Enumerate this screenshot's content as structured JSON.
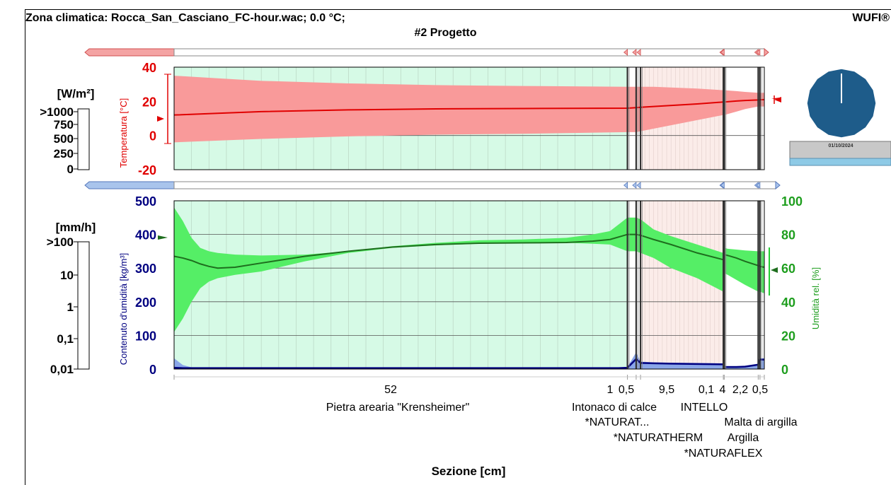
{
  "header": {
    "climate": "Zona climatica: Rocca_San_Casciano_FC-hour.wac; 0.0 °C;",
    "brand": "WUFI®",
    "project": "#2 Progetto"
  },
  "colors": {
    "temperature": "#e00000",
    "temperature_band": "#f99a9a",
    "humidity": "#1e6e1e",
    "humidity_band": "#55ee66",
    "water_content": "#000080",
    "water_band": "#8aa6e8",
    "layer_stone": "#d6fae6",
    "layer_plaster": "#fbece9",
    "clock_face": "#1e5c8a"
  },
  "chart_data": [
    {
      "type": "area",
      "name_key": "temperature",
      "ylabel": "Temperatura [°C]",
      "yticks": [
        "40",
        "20",
        "0",
        "-20"
      ],
      "ylim": [
        -20,
        40
      ],
      "x_unit": "cm",
      "x": [
        0,
        5,
        10,
        20,
        30,
        40,
        52,
        53,
        53.5,
        55,
        60,
        63,
        63.1,
        64.5,
        65.5,
        67,
        67.2,
        67.7
      ],
      "series": [
        {
          "role": "mean",
          "values": [
            12,
            13,
            14,
            15,
            15.6,
            15.8,
            16,
            16.3,
            16.5,
            17,
            18.5,
            19.6,
            19.6,
            20.2,
            20.5,
            20.8,
            20.9,
            21
          ]
        },
        {
          "role": "max",
          "values": [
            35,
            33.5,
            32,
            30.5,
            29.5,
            29,
            28.5,
            28.5,
            28.5,
            28.5,
            27.5,
            26.5,
            26.5,
            26,
            25.5,
            25,
            25,
            25
          ]
        },
        {
          "role": "min",
          "values": [
            -4,
            -3,
            -2,
            -0.5,
            0.5,
            1,
            2,
            2,
            2.5,
            4,
            9,
            12,
            12,
            14,
            15.5,
            17,
            17,
            17
          ]
        }
      ],
      "side_scale": {
        "label": "[W/m²]",
        "ticks": [
          ">1000",
          "750",
          "500",
          "250",
          "0"
        ]
      }
    },
    {
      "type": "area",
      "name_key": "moisture",
      "ylabel_left": "Contenuto d'umidità [kg/m³]",
      "ylabel_right": "Umidità rel. [%]",
      "yticks_left": [
        "500",
        "400",
        "300",
        "200",
        "100",
        "0"
      ],
      "yticks_right": [
        "100",
        "80",
        "60",
        "40",
        "20",
        "0"
      ],
      "ylim_left": [
        0,
        500
      ],
      "ylim_right": [
        0,
        100
      ],
      "x_unit": "cm",
      "x": [
        0,
        1,
        2,
        3,
        4,
        5,
        7,
        10,
        15,
        20,
        25,
        30,
        35,
        40,
        45,
        48,
        50,
        51,
        52,
        53,
        53.5,
        55,
        57,
        60,
        63,
        63.05,
        63.1,
        63.5,
        64.5,
        65.5,
        67,
        67.2,
        67.7
      ],
      "series": [
        {
          "role": "rh_mean",
          "values": [
            67,
            66,
            64.5,
            62.5,
            61,
            60,
            60.5,
            63,
            67,
            70,
            72.5,
            74,
            74.8,
            75,
            75.2,
            76,
            77,
            78.5,
            80,
            80,
            79.5,
            77,
            74,
            69,
            65,
            65,
            68,
            67.5,
            66,
            64,
            61.5,
            61,
            60.5
          ]
        },
        {
          "role": "rh_max",
          "values": [
            96,
            88,
            78,
            72,
            70,
            69,
            68,
            67.5,
            68,
            70,
            73,
            75,
            76.5,
            77,
            78,
            80,
            82,
            86,
            90,
            90,
            89,
            83,
            79,
            74,
            69,
            69,
            72,
            71.5,
            71,
            70.5,
            70,
            70,
            70
          ]
        },
        {
          "role": "rh_min",
          "values": [
            22,
            30,
            40,
            48,
            52,
            54,
            56,
            58,
            64,
            69,
            72,
            73.5,
            74.5,
            75,
            75,
            74.5,
            74,
            72,
            70,
            70,
            69,
            66,
            60,
            54,
            46,
            46,
            57,
            56,
            53,
            50,
            46,
            46,
            45
          ]
        },
        {
          "role": "water_content",
          "values": [
            4,
            3,
            3,
            3,
            3,
            3,
            3,
            3,
            3,
            3,
            3,
            3,
            3,
            3,
            3,
            3,
            3,
            3,
            4,
            30,
            18,
            17,
            16,
            15,
            14,
            6,
            6,
            6,
            6,
            7,
            13,
            28,
            28
          ]
        },
        {
          "role": "water_content_max",
          "values": [
            32,
            12,
            5,
            4,
            4,
            4,
            4,
            4,
            4,
            4,
            4,
            4,
            4,
            4,
            4,
            4,
            4,
            4,
            6,
            50,
            22,
            20,
            19,
            18,
            17,
            9,
            9,
            9,
            9,
            10,
            16,
            32,
            32
          ]
        }
      ],
      "side_scale": {
        "label": "[mm/h]",
        "ticks": [
          ">100",
          "10",
          "1",
          "0,1",
          "0,01"
        ]
      }
    }
  ],
  "layers": {
    "thickness_labels": [
      "52",
      "1",
      "0,5",
      "9,5",
      "0,1",
      "4",
      "2,2",
      "0,5"
    ],
    "names": [
      "Pietra arearia \"Krensheimer\"",
      "Intonaco di calce",
      "*NATURAT...",
      "*NATURATHERM",
      "INTELLO",
      "Malta di argilla",
      "Argilla",
      "*NATURAFLEX"
    ],
    "x_axis_label": "Sezione [cm]"
  },
  "clock": {
    "date": "01/10/2024"
  }
}
